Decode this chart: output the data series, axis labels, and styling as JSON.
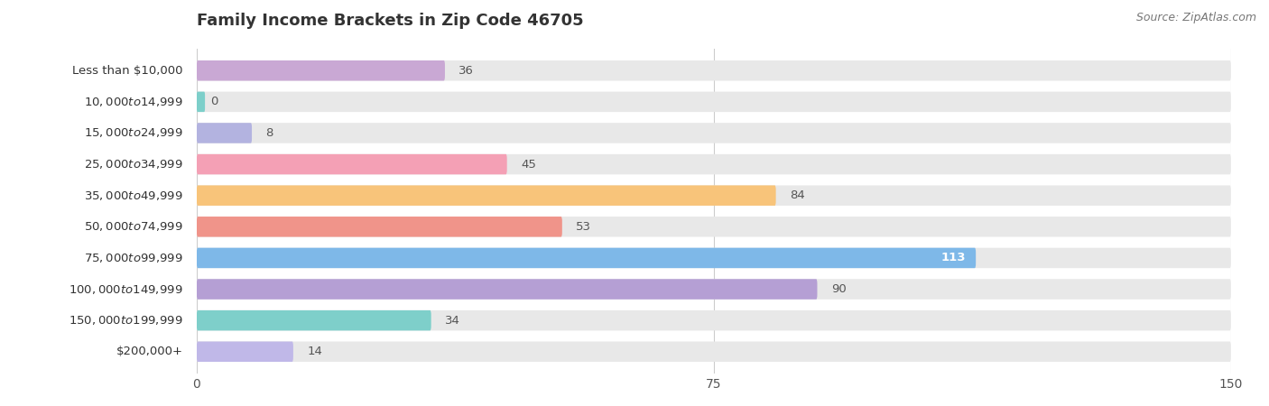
{
  "title": "Family Income Brackets in Zip Code 46705",
  "source": "Source: ZipAtlas.com",
  "categories": [
    "Less than $10,000",
    "$10,000 to $14,999",
    "$15,000 to $24,999",
    "$25,000 to $34,999",
    "$35,000 to $49,999",
    "$50,000 to $74,999",
    "$75,000 to $99,999",
    "$100,000 to $149,999",
    "$150,000 to $199,999",
    "$200,000+"
  ],
  "values": [
    36,
    0,
    8,
    45,
    84,
    53,
    113,
    90,
    34,
    14
  ],
  "bar_colors": [
    "#c9a8d4",
    "#7dcfca",
    "#b3b3e0",
    "#f4a0b5",
    "#f8c47a",
    "#f0948a",
    "#7eb8e8",
    "#b59fd4",
    "#7ecfca",
    "#c0b8e8"
  ],
  "xlim": [
    0,
    150
  ],
  "xticks": [
    0,
    75,
    150
  ],
  "background_color": "#ffffff",
  "bar_bg_color": "#e8e8e8",
  "title_fontsize": 13,
  "label_fontsize": 9.5,
  "value_fontsize": 9.5,
  "bar_height": 0.65
}
